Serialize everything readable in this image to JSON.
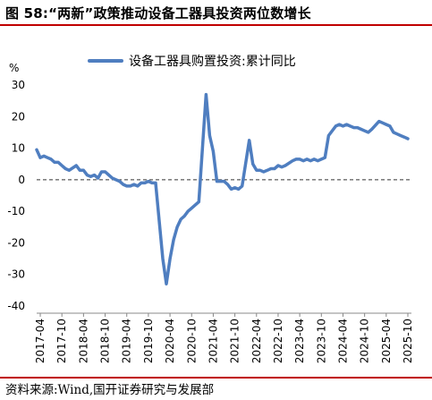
{
  "header": {
    "title": "图 58:“两新”政策推动设备工器具投资两位数增长"
  },
  "footer": {
    "source": "资料来源:Wind,国开证券研究与发展部"
  },
  "colors": {
    "line": "#4f7ec0",
    "rule": "#c00000"
  },
  "chart_data": {
    "type": "line",
    "unit": "%",
    "ylim": [
      -40,
      30
    ],
    "yticks": [
      30,
      20,
      10,
      0,
      -10,
      -20,
      -30,
      -40
    ],
    "xlim": [
      "2017-03",
      "2025-10"
    ],
    "xticks": [
      "2017-04",
      "2017-10",
      "2018-04",
      "2018-10",
      "2019-04",
      "2019-10",
      "2020-04",
      "2020-10",
      "2021-04",
      "2021-10",
      "2022-04",
      "2022-10",
      "2023-04",
      "2023-10",
      "2024-04",
      "2024-10",
      "2025-04",
      "2025-10"
    ],
    "legend": "top",
    "series": [
      {
        "name": "设备工器具购置投资:累计同比",
        "x": [
          "2017-03",
          "2017-04",
          "2017-05",
          "2017-06",
          "2017-07",
          "2017-08",
          "2017-09",
          "2017-10",
          "2017-11",
          "2017-12",
          "2018-02",
          "2018-03",
          "2018-04",
          "2018-05",
          "2018-06",
          "2018-07",
          "2018-08",
          "2018-09",
          "2018-10",
          "2018-11",
          "2018-12",
          "2019-02",
          "2019-03",
          "2019-04",
          "2019-05",
          "2019-06",
          "2019-07",
          "2019-08",
          "2019-09",
          "2019-10",
          "2019-11",
          "2019-12",
          "2020-02",
          "2020-03",
          "2020-04",
          "2020-05",
          "2020-06",
          "2020-07",
          "2020-08",
          "2020-09",
          "2020-10",
          "2020-11",
          "2020-12",
          "2021-02",
          "2021-03",
          "2021-04",
          "2021-05",
          "2021-06",
          "2021-07",
          "2021-08",
          "2021-09",
          "2021-10",
          "2021-11",
          "2021-12",
          "2022-02",
          "2022-03",
          "2022-04",
          "2022-05",
          "2022-06",
          "2022-07",
          "2022-08",
          "2022-09",
          "2022-10",
          "2022-11",
          "2022-12",
          "2023-02",
          "2023-03",
          "2023-04",
          "2023-05",
          "2023-06",
          "2023-07",
          "2023-08",
          "2023-09",
          "2023-10",
          "2023-11",
          "2023-12",
          "2024-02",
          "2024-03",
          "2024-04",
          "2024-05",
          "2024-06",
          "2024-07",
          "2024-08",
          "2024-09",
          "2024-10",
          "2024-11",
          "2024-12",
          "2025-02",
          "2025-03",
          "2025-04",
          "2025-05",
          "2025-06",
          "2025-07",
          "2025-08",
          "2025-09",
          "2025-10"
        ],
        "values": [
          9.5,
          7.0,
          7.5,
          7.0,
          6.5,
          5.5,
          5.5,
          4.5,
          3.5,
          3.0,
          4.5,
          3.0,
          3.0,
          1.5,
          1.0,
          1.5,
          0.5,
          2.5,
          2.5,
          1.5,
          0.5,
          -0.5,
          -1.5,
          -2.0,
          -2.0,
          -1.5,
          -2.0,
          -1.0,
          -1.0,
          -0.5,
          -1.0,
          -1.0,
          -25.0,
          -33.0,
          -25.0,
          -19.0,
          -15.0,
          -12.5,
          -11.5,
          -10.0,
          -9.0,
          -8.0,
          -7.0,
          27.0,
          14.0,
          9.0,
          -0.5,
          -0.5,
          -0.5,
          -1.5,
          -3.0,
          -2.5,
          -3.0,
          -2.0,
          12.5,
          5.0,
          3.0,
          3.0,
          2.5,
          3.0,
          3.5,
          3.5,
          4.5,
          4.0,
          4.5,
          6.0,
          6.5,
          6.5,
          6.0,
          6.5,
          6.0,
          6.5,
          6.0,
          6.5,
          7.0,
          14.0,
          17.0,
          17.5,
          17.0,
          17.5,
          17.0,
          16.5,
          16.5,
          16.0,
          15.5,
          15.0,
          16.0,
          18.5,
          18.0,
          17.5,
          17.0,
          15.0,
          14.5,
          14.0,
          13.5,
          13.0
        ]
      }
    ]
  }
}
